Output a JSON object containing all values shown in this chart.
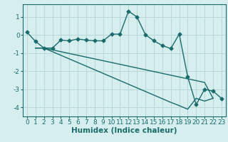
{
  "title": "",
  "xlabel": "Humidex (Indice chaleur)",
  "background_color": "#d6eeee",
  "grid_color": "#b8d8d8",
  "line_color": "#1a6b6b",
  "x_values": [
    0,
    1,
    2,
    3,
    4,
    5,
    6,
    7,
    8,
    9,
    10,
    11,
    12,
    13,
    14,
    15,
    16,
    17,
    18,
    19,
    20,
    21,
    22,
    23
  ],
  "line1": [
    0.15,
    -0.35,
    -0.72,
    -0.72,
    -0.28,
    -0.32,
    -0.22,
    -0.28,
    -0.32,
    -0.32,
    0.05,
    0.05,
    1.32,
    1.0,
    0.02,
    -0.32,
    -0.58,
    -0.75,
    0.05,
    -2.3,
    -3.85,
    -3.0,
    -3.1,
    -3.5
  ],
  "line3_start_x": 1,
  "line3": [
    -0.72,
    -0.72,
    -0.82,
    -0.92,
    -1.02,
    -1.12,
    -1.22,
    -1.32,
    -1.42,
    -1.52,
    -1.62,
    -1.72,
    -1.82,
    -1.92,
    -2.02,
    -2.12,
    -2.22,
    -2.32,
    -2.42,
    -2.52,
    -2.62,
    -3.5
  ],
  "line4_start_x": 1,
  "line4": [
    -0.72,
    -0.72,
    -0.92,
    -1.12,
    -1.32,
    -1.52,
    -1.72,
    -1.92,
    -2.12,
    -2.32,
    -2.52,
    -2.72,
    -2.92,
    -3.12,
    -3.32,
    -3.52,
    -3.72,
    -3.9,
    -4.1,
    -3.5,
    -3.65,
    -3.5
  ],
  "ylim": [
    -4.5,
    1.7
  ],
  "xlim": [
    -0.5,
    23.5
  ],
  "yticks": [
    -4,
    -3,
    -2,
    -1,
    0,
    1
  ],
  "xticks": [
    0,
    1,
    2,
    3,
    4,
    5,
    6,
    7,
    8,
    9,
    10,
    11,
    12,
    13,
    14,
    15,
    16,
    17,
    18,
    19,
    20,
    21,
    22,
    23
  ],
  "marker": "D",
  "marker_size": 2.5,
  "line_width": 1.0,
  "xlabel_fontsize": 7.5,
  "tick_fontsize": 6.5
}
